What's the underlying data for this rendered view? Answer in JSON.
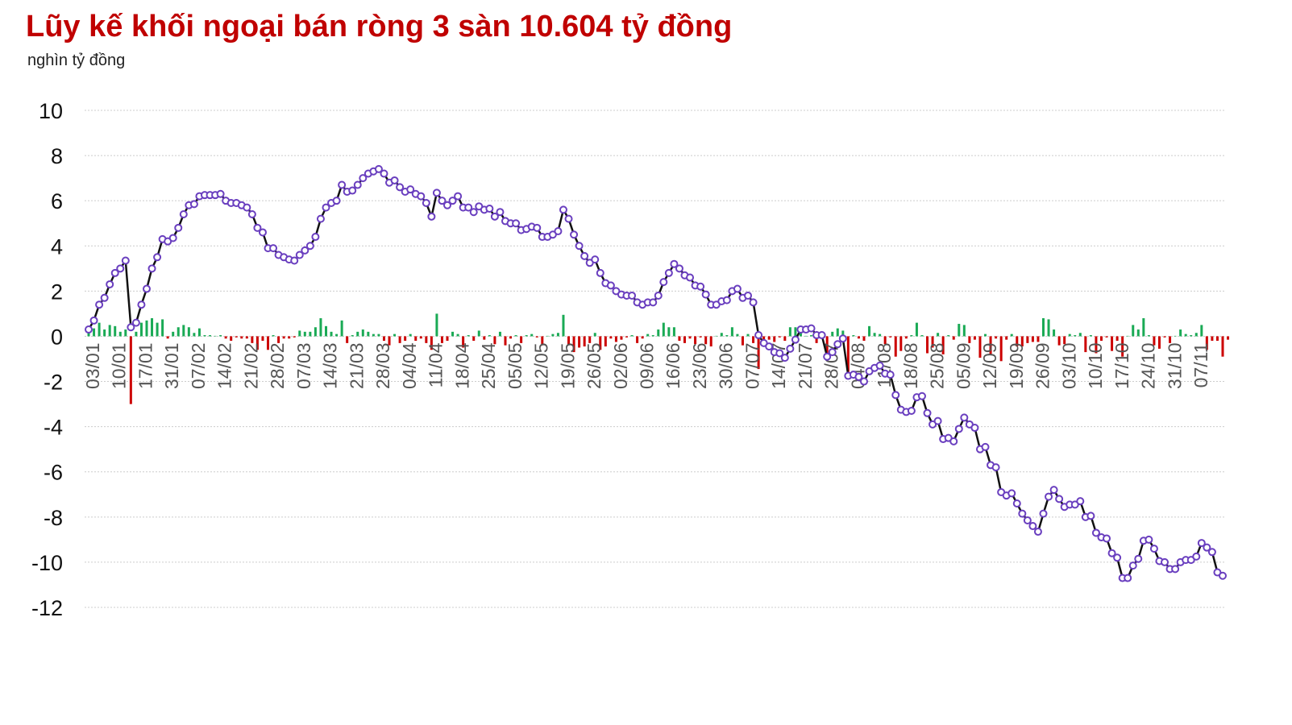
{
  "title": "Lũy kế khối ngoại bán ròng 3 sàn 10.604 tỷ đồng",
  "unit_label": "nghìn tỷ đồng",
  "chart_data": {
    "type": "line",
    "title": "Lũy kế khối ngoại bán ròng 3 sàn 10.604 tỷ đồng",
    "ylabel": "nghìn tỷ đồng",
    "ylim": [
      -12,
      10
    ],
    "yticks": [
      10,
      8,
      6,
      4,
      2,
      0,
      -2,
      -4,
      -6,
      -8,
      -10,
      -12
    ],
    "grid": true,
    "xtick_labels": [
      "03/01",
      "10/01",
      "17/01",
      "31/01",
      "07/02",
      "14/02",
      "21/02",
      "28/02",
      "07/03",
      "14/03",
      "21/03",
      "28/03",
      "04/04",
      "11/04",
      "18/04",
      "25/04",
      "05/05",
      "12/05",
      "19/05",
      "26/05",
      "02/06",
      "09/06",
      "16/06",
      "23/06",
      "30/06",
      "07/07",
      "14/07",
      "21/07",
      "28/07",
      "04/08",
      "11/08",
      "18/08",
      "25/08",
      "05/09",
      "12/09",
      "19/09",
      "26/09",
      "03/10",
      "10/10",
      "17/10",
      "24/10",
      "31/10",
      "07/11"
    ],
    "colors": {
      "line": "#111111",
      "marker_edge": "#6a3fbf",
      "marker_fill": "#ffffff",
      "bar_positive": "#1aaa55",
      "bar_negative": "#cc0000",
      "grid": "#cccccc"
    },
    "series": [
      {
        "type": "line",
        "values": [
          0.3,
          0.7,
          1.4,
          1.7,
          2.3,
          2.8,
          3.0,
          3.35,
          0.4,
          0.6,
          1.4,
          2.1,
          3.0,
          3.5,
          4.3,
          4.2,
          4.35,
          4.8,
          5.4,
          5.8,
          5.85,
          6.2,
          6.25,
          6.25,
          6.25,
          6.3,
          6.0,
          5.9,
          5.9,
          5.8,
          5.7,
          5.4,
          4.8,
          4.6,
          3.9,
          3.9,
          3.6,
          3.5,
          3.4,
          3.35,
          3.6,
          3.8,
          4.0,
          4.4,
          5.2,
          5.7,
          5.9,
          6.0,
          6.7,
          6.4,
          6.45,
          6.7,
          7.0,
          7.2,
          7.3,
          7.4,
          7.2,
          6.8,
          6.9,
          6.6,
          6.4,
          6.5,
          6.3,
          6.2,
          5.9,
          5.3,
          6.35,
          6.0,
          5.8,
          6.0,
          6.2,
          5.7,
          5.7,
          5.5,
          5.75,
          5.6,
          5.65,
          5.3,
          5.5,
          5.1,
          5.0,
          5.0,
          4.7,
          4.75,
          4.85,
          4.8,
          4.4,
          4.4,
          4.5,
          4.65,
          5.6,
          5.2,
          4.5,
          4.0,
          3.55,
          3.25,
          3.4,
          2.8,
          2.35,
          2.25,
          2.0,
          1.85,
          1.8,
          1.8,
          1.5,
          1.4,
          1.5,
          1.5,
          1.8,
          2.4,
          2.8,
          3.2,
          3.0,
          2.7,
          2.6,
          2.25,
          2.2,
          1.85,
          1.4,
          1.4,
          1.55,
          1.6,
          2.0,
          2.1,
          1.7,
          1.8,
          1.5,
          0.05,
          -0.3,
          -0.45,
          -0.7,
          -0.75,
          -0.95,
          -0.55,
          -0.15,
          0.3,
          0.3,
          0.35,
          0.05,
          0.05,
          -0.9,
          -0.7,
          -0.35,
          -0.1,
          -1.75,
          -1.7,
          -1.8,
          -2.0,
          -1.55,
          -1.4,
          -1.3,
          -1.65,
          -1.7,
          -2.6,
          -3.25,
          -3.35,
          -3.3,
          -2.7,
          -2.65,
          -3.4,
          -3.9,
          -3.75,
          -4.55,
          -4.5,
          -4.65,
          -4.1,
          -3.6,
          -3.9,
          -4.05,
          -5.0,
          -4.9,
          -5.7,
          -5.8,
          -6.9,
          -7.05,
          -6.95,
          -7.4,
          -7.85,
          -8.15,
          -8.4,
          -8.65,
          -7.85,
          -7.1,
          -6.8,
          -7.2,
          -7.55,
          -7.45,
          -7.45,
          -7.3,
          -8.0,
          -7.95,
          -8.7,
          -8.9,
          -8.95,
          -9.6,
          -9.8,
          -10.7,
          -10.7,
          -10.15,
          -9.85,
          -9.05,
          -9.0,
          -9.4,
          -9.95,
          -10.0,
          -10.3,
          -10.3,
          -10.0,
          -9.9,
          -9.9,
          -9.75,
          -9.15,
          -9.35,
          -9.55,
          -10.45,
          -10.6
        ]
      },
      {
        "type": "bar",
        "values": [
          0.2,
          0.35,
          0.6,
          0.3,
          0.5,
          0.45,
          0.2,
          0.3,
          -3.0,
          0.2,
          0.6,
          0.7,
          0.8,
          0.6,
          0.75,
          -0.1,
          0.2,
          0.4,
          0.5,
          0.4,
          0.15,
          0.35,
          0.05,
          0.05,
          0.02,
          0.05,
          -0.1,
          -0.2,
          -0.05,
          -0.1,
          -0.1,
          -0.3,
          -0.6,
          -0.2,
          -0.6,
          0.05,
          -0.3,
          -0.1,
          -0.1,
          -0.05,
          0.25,
          0.2,
          0.2,
          0.4,
          0.8,
          0.45,
          0.2,
          0.1,
          0.7,
          -0.3,
          0.05,
          0.2,
          0.3,
          0.2,
          0.1,
          0.1,
          -0.2,
          -0.4,
          0.1,
          -0.3,
          -0.2,
          0.1,
          -0.2,
          -0.1,
          -0.3,
          -0.6,
          1.0,
          -0.3,
          -0.2,
          0.2,
          0.1,
          -0.5,
          0.05,
          -0.2,
          0.25,
          -0.15,
          0.05,
          -0.35,
          0.2,
          -0.4,
          -0.1,
          0.05,
          -0.3,
          0.05,
          0.1,
          -0.05,
          -0.4,
          0.02,
          0.1,
          0.15,
          0.95,
          -0.4,
          -0.7,
          -0.5,
          -0.45,
          -0.3,
          0.15,
          -0.6,
          -0.45,
          -0.1,
          -0.25,
          -0.15,
          -0.05,
          0.05,
          -0.3,
          -0.1,
          0.1,
          0.05,
          0.3,
          0.6,
          0.4,
          0.4,
          -0.2,
          -0.3,
          -0.1,
          -0.35,
          -0.05,
          -0.35,
          -0.45,
          0.02,
          0.15,
          0.05,
          0.4,
          0.1,
          -0.4,
          0.1,
          -0.3,
          -1.45,
          -0.35,
          -0.15,
          -0.25,
          -0.05,
          -0.2,
          0.4,
          0.4,
          0.45,
          0.02,
          0.05,
          -0.3,
          0.02,
          -0.95,
          0.2,
          0.35,
          0.25,
          -1.65,
          0.05,
          -0.1,
          -0.2,
          0.45,
          0.15,
          0.1,
          -0.35,
          -0.05,
          -0.9,
          -0.65,
          -0.1,
          0.05,
          0.6,
          0.05,
          -0.75,
          -0.5,
          0.15,
          -0.8,
          0.05,
          -0.15,
          0.55,
          0.5,
          -0.3,
          -0.15,
          -0.95,
          0.1,
          -0.8,
          -0.1,
          -1.1,
          -0.15,
          0.1,
          -0.45,
          -0.45,
          -0.3,
          -0.25,
          -0.25,
          0.8,
          0.75,
          0.3,
          -0.4,
          -0.35,
          0.1,
          0.05,
          0.15,
          -0.7,
          0.05,
          -0.75,
          -0.2,
          -0.05,
          -0.65,
          -0.2,
          -0.9,
          0.02,
          0.5,
          0.3,
          0.8,
          0.05,
          -0.4,
          -0.55,
          -0.05,
          -0.3,
          0.02,
          0.3,
          0.1,
          0.05,
          0.15,
          0.5,
          -0.6,
          -0.2,
          -0.2,
          -0.9,
          -0.15
        ]
      }
    ]
  }
}
